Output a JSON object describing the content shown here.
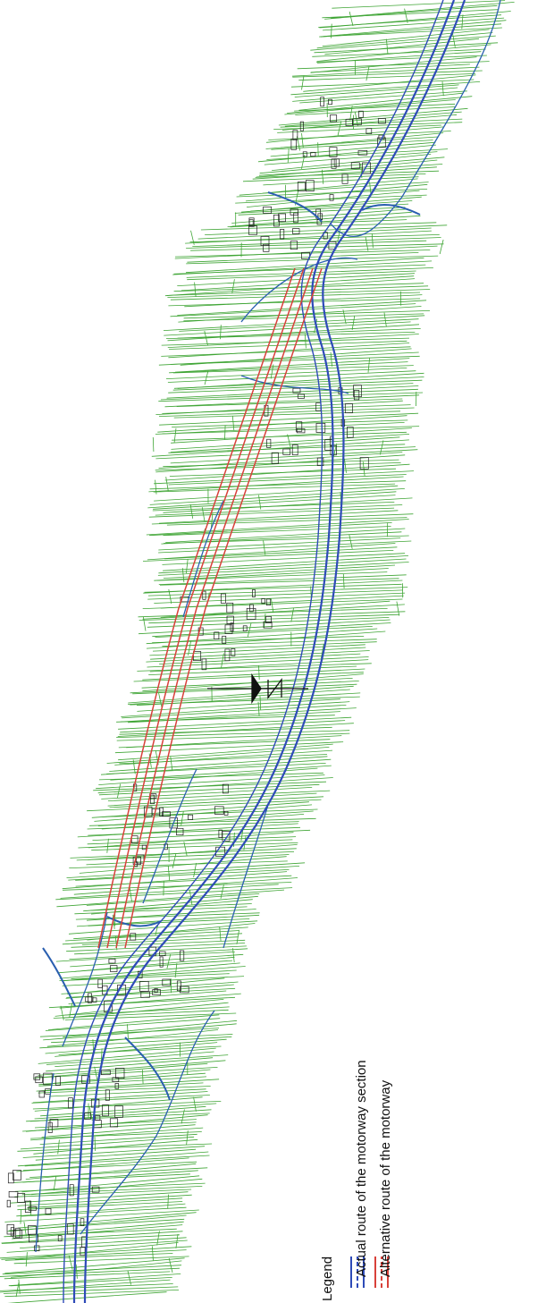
{
  "legend": {
    "title": "Legend",
    "items": [
      {
        "label": "Actual route of the motorway section",
        "color": "#2e4bb8"
      },
      {
        "label": "Alternative route of the motorway",
        "color": "#d8413a"
      }
    ]
  },
  "map": {
    "parcel_color": "#3fa535",
    "building_color": "#111111",
    "water_color": "#2a5fb0",
    "north_arrow": "north-arrow-icon"
  }
}
